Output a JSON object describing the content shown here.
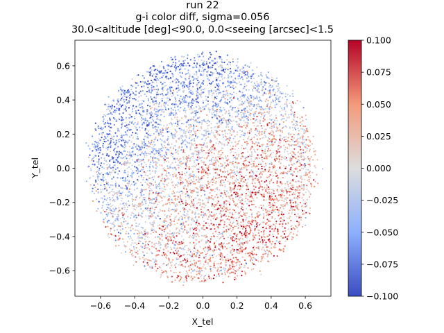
{
  "chart_data": {
    "type": "scatter",
    "title_lines": [
      "run 22",
      "g-i color diff,  sigma=0.056",
      "30.0<altitude [deg]<90.0, 0.0<seeing [arcsec]<1.5"
    ],
    "xlabel": "X_tel",
    "ylabel": "Y_tel",
    "xlim": [
      -0.75,
      0.75
    ],
    "ylim": [
      -0.75,
      0.75
    ],
    "xticks": [
      -0.6,
      -0.4,
      -0.2,
      0.0,
      0.2,
      0.4,
      0.6
    ],
    "xtick_labels": [
      "−0.6",
      "−0.4",
      "−0.2",
      "0.0",
      "0.2",
      "0.4",
      "0.6"
    ],
    "yticks": [
      0.6,
      0.4,
      0.2,
      0.0,
      -0.2,
      -0.4,
      -0.6
    ],
    "ytick_labels": [
      "0.6",
      "0.4",
      "0.2",
      "0.0",
      "−0.2",
      "−0.4",
      "−0.6"
    ],
    "grid": false,
    "colormap": "coolwarm",
    "colormap_stops": [
      "#3b4cc0",
      "#8db0fe",
      "#dddddd",
      "#f49a7b",
      "#b40426"
    ],
    "colorbar": {
      "range": [
        -0.1,
        0.1
      ],
      "ticks": [
        0.1,
        0.075,
        0.05,
        0.025,
        0.0,
        -0.025,
        -0.05,
        -0.075,
        -0.1
      ],
      "tick_labels": [
        "0.100",
        "0.075",
        "0.050",
        "0.025",
        "0.000",
        "−0.025",
        "−0.050",
        "−0.075",
        "−0.100"
      ]
    },
    "footprint_radius": 0.66,
    "sigma": 0.056,
    "mean_field_grid": {
      "x": [
        -0.6,
        -0.4,
        -0.2,
        0.0,
        0.2,
        0.4,
        0.6
      ],
      "y": [
        0.6,
        0.4,
        0.2,
        0.0,
        -0.2,
        -0.4,
        -0.6
      ],
      "values": [
        [
          -0.06,
          -0.06,
          -0.07,
          -0.07,
          -0.05,
          -0.03,
          -0.02
        ],
        [
          -0.06,
          -0.06,
          -0.05,
          -0.04,
          -0.03,
          -0.01,
          0.0
        ],
        [
          -0.07,
          -0.05,
          -0.03,
          -0.01,
          0.01,
          0.02,
          0.01
        ],
        [
          -0.05,
          -0.03,
          0.0,
          0.03,
          0.03,
          0.04,
          0.02
        ],
        [
          -0.02,
          -0.01,
          0.01,
          0.02,
          0.04,
          0.05,
          0.03
        ],
        [
          0.0,
          0.01,
          0.02,
          0.03,
          0.05,
          0.05,
          0.03
        ],
        [
          0.01,
          0.02,
          0.04,
          0.03,
          0.04,
          0.03,
          0.02
        ]
      ]
    }
  }
}
